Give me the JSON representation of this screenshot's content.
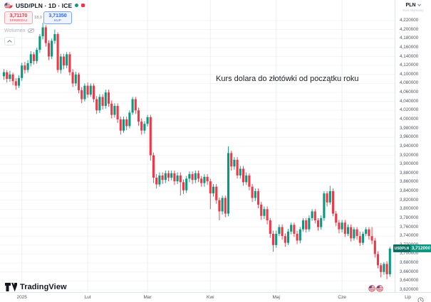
{
  "legend": {
    "symbol_title": "USD/PLN · 1D · ICE",
    "sell_price": "3,71170",
    "sell_label": "SPRZEDAJ",
    "spread": "18,0",
    "buy_price": "3,71350",
    "buy_label": "KUP",
    "indicator": "Wolumen"
  },
  "annotation": {
    "text": "Kurs dolara do złotówki od początku roku"
  },
  "price_axis": {
    "currency": "PLN",
    "note": "Kurs Wymiany",
    "tag_symbol": "USDPLN",
    "tag_value": "3,712000"
  },
  "branding": {
    "logo_text": "TradingView"
  },
  "colors": {
    "up": "#089981",
    "down": "#f23645",
    "grid_h": "#f2f4f8",
    "grid_v": "#eceef2",
    "axis_border": "#e0e3eb",
    "sell_red": "#f23645",
    "buy_blue": "#2962ff"
  },
  "chart_data": {
    "type": "candlestick",
    "title": "USD/PLN · 1D · ICE",
    "ylabel": "PLN",
    "legend_position": "top-left",
    "grid": true,
    "last_price_value": 3.712,
    "y_axis": {
      "max": 4.22,
      "min": 3.62,
      "step": 0.02,
      "decimals": 6
    },
    "x_axis": {
      "months": [
        {
          "label": "2025",
          "i": 6
        },
        {
          "label": "Lut",
          "i": 28
        },
        {
          "label": "Mar",
          "i": 48
        },
        {
          "label": "Kwi",
          "i": 69
        },
        {
          "label": "Maj",
          "i": 91
        },
        {
          "label": "Cze",
          "i": 113
        },
        {
          "label": "Lip",
          "i": 135
        }
      ]
    },
    "candles": [
      [
        4.096,
        4.112,
        4.088,
        4.105
      ],
      [
        4.105,
        4.11,
        4.082,
        4.09
      ],
      [
        4.09,
        4.108,
        4.084,
        4.1
      ],
      [
        4.1,
        4.104,
        4.076,
        4.085
      ],
      [
        4.085,
        4.092,
        4.066,
        4.075
      ],
      [
        4.075,
        4.098,
        4.07,
        4.092
      ],
      [
        4.092,
        4.126,
        4.086,
        4.12
      ],
      [
        4.12,
        4.128,
        4.102,
        4.11
      ],
      [
        4.11,
        4.132,
        4.104,
        4.125
      ],
      [
        4.125,
        4.152,
        4.118,
        4.145
      ],
      [
        4.145,
        4.15,
        4.122,
        4.13
      ],
      [
        4.13,
        4.16,
        4.124,
        4.155
      ],
      [
        4.155,
        4.19,
        4.148,
        4.185
      ],
      [
        4.185,
        4.215,
        4.178,
        4.205
      ],
      [
        4.205,
        4.21,
        4.162,
        4.17
      ],
      [
        4.17,
        4.176,
        4.132,
        4.14
      ],
      [
        4.14,
        4.18,
        4.134,
        4.175
      ],
      [
        4.175,
        4.2,
        4.168,
        4.19
      ],
      [
        4.19,
        4.194,
        4.104,
        4.11
      ],
      [
        4.11,
        4.146,
        4.102,
        4.14
      ],
      [
        4.14,
        4.146,
        4.112,
        4.12
      ],
      [
        4.12,
        4.15,
        4.114,
        4.145
      ],
      [
        4.145,
        4.15,
        4.098,
        4.105
      ],
      [
        4.105,
        4.112,
        4.072,
        4.08
      ],
      [
        4.08,
        4.106,
        4.074,
        4.1
      ],
      [
        4.1,
        4.104,
        4.058,
        4.065
      ],
      [
        4.065,
        4.072,
        4.036,
        4.045
      ],
      [
        4.045,
        4.08,
        4.04,
        4.075
      ],
      [
        4.075,
        4.082,
        4.048,
        4.055
      ],
      [
        4.055,
        4.08,
        4.05,
        4.075
      ],
      [
        4.075,
        4.08,
        4.038,
        4.045
      ],
      [
        4.045,
        4.052,
        4.012,
        4.02
      ],
      [
        4.02,
        4.056,
        4.014,
        4.05
      ],
      [
        4.05,
        4.056,
        4.022,
        4.03
      ],
      [
        4.03,
        4.066,
        4.024,
        4.06
      ],
      [
        4.06,
        4.066,
        4.028,
        4.035
      ],
      [
        4.035,
        4.042,
        4.002,
        4.01
      ],
      [
        4.01,
        4.036,
        4.004,
        4.03
      ],
      [
        4.03,
        4.036,
        3.992,
        4.0
      ],
      [
        4.0,
        4.006,
        3.966,
        3.975
      ],
      [
        3.975,
        4.006,
        3.97,
        4.0
      ],
      [
        4.0,
        4.006,
        3.976,
        3.985
      ],
      [
        3.985,
        4.02,
        3.98,
        4.015
      ],
      [
        4.015,
        4.05,
        4.01,
        4.045
      ],
      [
        4.045,
        4.05,
        4.012,
        4.02
      ],
      [
        4.02,
        4.026,
        3.986,
        3.995
      ],
      [
        3.995,
        4.002,
        3.966,
        3.975
      ],
      [
        3.975,
        3.996,
        3.968,
        3.99
      ],
      [
        3.99,
        4.01,
        3.984,
        4.005
      ],
      [
        4.005,
        4.01,
        3.908,
        3.92
      ],
      [
        3.92,
        3.926,
        3.858,
        3.87
      ],
      [
        3.87,
        3.878,
        3.846,
        3.855
      ],
      [
        3.855,
        3.882,
        3.85,
        3.875
      ],
      [
        3.875,
        3.882,
        3.856,
        3.865
      ],
      [
        3.865,
        3.886,
        3.858,
        3.88
      ],
      [
        3.88,
        3.886,
        3.862,
        3.87
      ],
      [
        3.87,
        3.886,
        3.864,
        3.88
      ],
      [
        3.88,
        3.886,
        3.854,
        3.862
      ],
      [
        3.862,
        3.882,
        3.856,
        3.875
      ],
      [
        3.875,
        3.882,
        3.83,
        3.86
      ],
      [
        3.86,
        3.866,
        3.834,
        3.842
      ],
      [
        3.842,
        3.874,
        3.836,
        3.868
      ],
      [
        3.868,
        3.884,
        3.86,
        3.878
      ],
      [
        3.878,
        3.884,
        3.856,
        3.865
      ],
      [
        3.865,
        3.886,
        3.858,
        3.88
      ],
      [
        3.88,
        3.886,
        3.86,
        3.868
      ],
      [
        3.868,
        3.874,
        3.85,
        3.858
      ],
      [
        3.858,
        3.878,
        3.85,
        3.872
      ],
      [
        3.872,
        3.878,
        3.854,
        3.862
      ],
      [
        3.862,
        3.868,
        3.8,
        3.835
      ],
      [
        3.835,
        3.856,
        3.828,
        3.85
      ],
      [
        3.85,
        3.856,
        3.812,
        3.82
      ],
      [
        3.82,
        3.826,
        3.775,
        3.795
      ],
      [
        3.795,
        3.83,
        3.788,
        3.825
      ],
      [
        3.825,
        3.83,
        3.782,
        3.79
      ],
      [
        3.79,
        3.94,
        3.784,
        3.925
      ],
      [
        3.925,
        3.93,
        3.886,
        3.895
      ],
      [
        3.895,
        3.916,
        3.888,
        3.91
      ],
      [
        3.91,
        3.916,
        3.868,
        3.875
      ],
      [
        3.875,
        3.896,
        3.868,
        3.89
      ],
      [
        3.89,
        3.896,
        3.852,
        3.86
      ],
      [
        3.86,
        3.882,
        3.854,
        3.875
      ],
      [
        3.875,
        3.88,
        3.842,
        3.85
      ],
      [
        3.85,
        3.856,
        3.816,
        3.825
      ],
      [
        3.825,
        3.846,
        3.818,
        3.84
      ],
      [
        3.84,
        3.846,
        3.802,
        3.81
      ],
      [
        3.81,
        3.816,
        3.776,
        3.785
      ],
      [
        3.785,
        3.806,
        3.778,
        3.8
      ],
      [
        3.8,
        3.806,
        3.766,
        3.775
      ],
      [
        3.775,
        3.78,
        3.736,
        3.745
      ],
      [
        3.745,
        3.752,
        3.705,
        3.72
      ],
      [
        3.72,
        3.752,
        3.714,
        3.745
      ],
      [
        3.745,
        3.766,
        3.74,
        3.76
      ],
      [
        3.76,
        3.766,
        3.732,
        3.74
      ],
      [
        3.74,
        3.746,
        3.716,
        3.725
      ],
      [
        3.725,
        3.756,
        3.72,
        3.75
      ],
      [
        3.75,
        3.77,
        3.744,
        3.765
      ],
      [
        3.765,
        3.77,
        3.738,
        3.745
      ],
      [
        3.745,
        3.752,
        3.722,
        3.73
      ],
      [
        3.73,
        3.76,
        3.724,
        3.755
      ],
      [
        3.755,
        3.78,
        3.75,
        3.775
      ],
      [
        3.775,
        3.78,
        3.748,
        3.755
      ],
      [
        3.755,
        3.786,
        3.75,
        3.78
      ],
      [
        3.78,
        3.8,
        3.774,
        3.795
      ],
      [
        3.795,
        3.8,
        3.768,
        3.775
      ],
      [
        3.775,
        3.78,
        3.752,
        3.76
      ],
      [
        3.76,
        3.786,
        3.754,
        3.78
      ],
      [
        3.78,
        3.84,
        3.774,
        3.835
      ],
      [
        3.835,
        3.84,
        3.806,
        3.815
      ],
      [
        3.815,
        3.852,
        3.81,
        3.84
      ],
      [
        3.84,
        3.846,
        3.784,
        3.79
      ],
      [
        3.79,
        3.796,
        3.762,
        3.77
      ],
      [
        3.77,
        3.776,
        3.746,
        3.755
      ],
      [
        3.755,
        3.776,
        3.748,
        3.77
      ],
      [
        3.77,
        3.776,
        3.738,
        3.745
      ],
      [
        3.745,
        3.766,
        3.74,
        3.76
      ],
      [
        3.76,
        3.766,
        3.728,
        3.735
      ],
      [
        3.735,
        3.76,
        3.73,
        3.755
      ],
      [
        3.755,
        3.76,
        3.732,
        3.74
      ],
      [
        3.74,
        3.75,
        3.718,
        3.725
      ],
      [
        3.725,
        3.75,
        3.72,
        3.745
      ],
      [
        3.745,
        3.76,
        3.74,
        3.755
      ],
      [
        3.755,
        3.76,
        3.732,
        3.74
      ],
      [
        3.74,
        3.76,
        3.722,
        3.73
      ],
      [
        3.73,
        3.736,
        3.692,
        3.7
      ],
      [
        3.7,
        3.706,
        3.668,
        3.675
      ],
      [
        3.675,
        3.68,
        3.648,
        3.66
      ],
      [
        3.66,
        3.682,
        3.654,
        3.678
      ],
      [
        3.678,
        3.684,
        3.644,
        3.655
      ],
      [
        3.655,
        3.716,
        3.649,
        3.712
      ]
    ]
  }
}
